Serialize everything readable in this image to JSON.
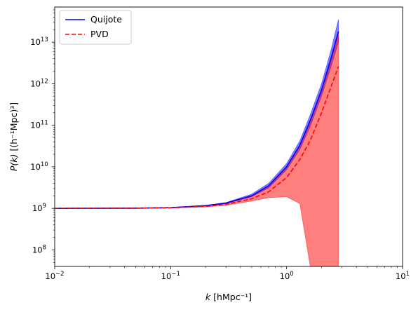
{
  "chart_data": {
    "type": "line",
    "xscale": "log",
    "yscale": "log",
    "xlim": [
      0.01,
      10
    ],
    "ylim": [
      40000000,
      70000000000000
    ],
    "xlabel": {
      "text": "k",
      "unit": "[hMpc⁻¹]"
    },
    "ylabel": {
      "text": "P(k)",
      "unit": "[(h⁻¹Mpc)³]"
    },
    "xticks": [
      {
        "value": 0.01,
        "base": "10",
        "exp": "−2"
      },
      {
        "value": 0.1,
        "base": "10",
        "exp": "−1"
      },
      {
        "value": 1,
        "base": "10",
        "exp": "0"
      },
      {
        "value": 10,
        "base": "10",
        "exp": "1"
      }
    ],
    "yticks": [
      {
        "value": 100000000,
        "base": "10",
        "exp": "8"
      },
      {
        "value": 1000000000,
        "base": "10",
        "exp": "9"
      },
      {
        "value": 10000000000,
        "base": "10",
        "exp": "10"
      },
      {
        "value": 100000000000,
        "base": "10",
        "exp": "11"
      },
      {
        "value": 1000000000000,
        "base": "10",
        "exp": "12"
      },
      {
        "value": 10000000000000,
        "base": "10",
        "exp": "13"
      }
    ],
    "legend": {
      "placement": "upper-left"
    },
    "series": [
      {
        "name": "Quijote",
        "color": "#0000ff",
        "style": "solid",
        "band_color": "#0000ff",
        "x": [
          0.01,
          0.05,
          0.1,
          0.2,
          0.3,
          0.5,
          0.7,
          1.0,
          1.3,
          1.6,
          2.0,
          2.4,
          2.8
        ],
        "y": [
          1000000000.0,
          1010000000.0,
          1040000000.0,
          1160000000.0,
          1340000000.0,
          2000000000.0,
          3500000000.0,
          10000000000.0,
          33000000000.0,
          130000000000.0,
          700000000000.0,
          3800000000000.0,
          18000000000000.0
        ],
        "lower": [
          1000000000.0,
          1000000000.0,
          1030000000.0,
          1140000000.0,
          1300000000.0,
          1900000000.0,
          3100000000.0,
          8500000000.0,
          26000000000.0,
          95000000000.0,
          500000000000.0,
          2400000000000.0,
          10000000000000.0
        ],
        "upper": [
          1000000000.0,
          1020000000.0,
          1050000000.0,
          1180000000.0,
          1380000000.0,
          2200000000.0,
          4000000000.0,
          12000000000.0,
          42000000000.0,
          180000000000.0,
          1000000000000.0,
          6000000000000.0,
          35000000000000.0
        ]
      },
      {
        "name": "PVD",
        "color": "#ff0000",
        "style": "dashed",
        "band_color": "#ff0000",
        "x": [
          0.01,
          0.05,
          0.1,
          0.2,
          0.3,
          0.5,
          0.7,
          1.0,
          1.3,
          1.6,
          2.0,
          2.4,
          2.8
        ],
        "y": [
          1000000000.0,
          1010000000.0,
          1030000000.0,
          1120000000.0,
          1250000000.0,
          1700000000.0,
          2500000000.0,
          5500000000.0,
          15000000000.0,
          43000000000.0,
          200000000000.0,
          800000000000.0,
          2600000000000.0
        ],
        "lower": [
          1000000000.0,
          1000000000.0,
          1020000000.0,
          1080000000.0,
          1180000000.0,
          1500000000.0,
          1800000000.0,
          1900000000.0,
          1300000000.0,
          40000000.0,
          40000000.0,
          40000000.0,
          40000000.0
        ],
        "upper": [
          1000000000.0,
          1020000000.0,
          1040000000.0,
          1150000000.0,
          1320000000.0,
          1950000000.0,
          3300000000.0,
          9500000000.0,
          32000000000.0,
          125000000000.0,
          650000000000.0,
          3300000000000.0,
          15000000000000.0
        ]
      }
    ]
  }
}
